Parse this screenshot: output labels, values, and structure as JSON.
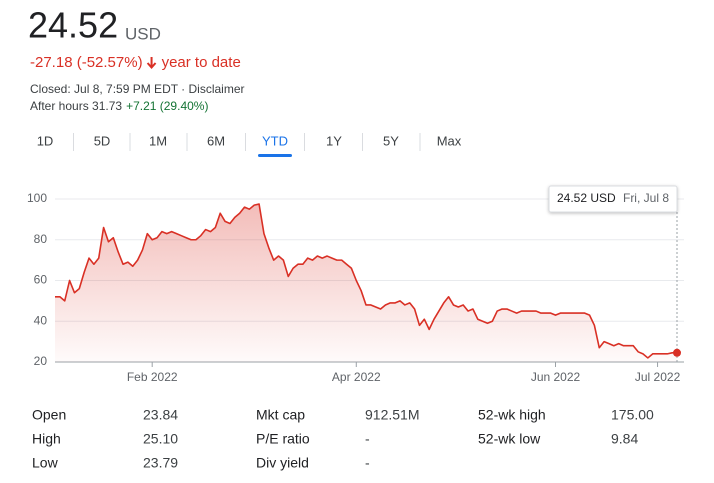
{
  "header": {
    "price": "24.52",
    "currency": "USD",
    "change": "-27.18 (-52.57%)",
    "period": "year to date",
    "closed": "Closed: Jul 8, 7:59 PM EDT · Disclaimer",
    "after_hours": "After hours 31.73",
    "after_hours_change": "+7.21 (29.40%)"
  },
  "tabs": [
    "1D",
    "5D",
    "1M",
    "6M",
    "YTD",
    "1Y",
    "5Y",
    "Max"
  ],
  "selected_tab": 4,
  "tooltip": {
    "price": "24.52 USD",
    "date": "Fri, Jul 8"
  },
  "chart_data": {
    "type": "line",
    "color": "#d93025",
    "categories": [
      null,
      null,
      null,
      null,
      null,
      null,
      null,
      null,
      null,
      null,
      null,
      null,
      null,
      null,
      null,
      null,
      null,
      null,
      null,
      null,
      "Feb 2022",
      null,
      null,
      null,
      null,
      null,
      null,
      null,
      null,
      null,
      null,
      null,
      null,
      null,
      null,
      null,
      null,
      null,
      null,
      null,
      null,
      null,
      null,
      null,
      null,
      null,
      null,
      null,
      null,
      null,
      null,
      null,
      null,
      null,
      null,
      null,
      null,
      null,
      null,
      null,
      null,
      null,
      "Apr 2022",
      null,
      null,
      null,
      null,
      null,
      null,
      null,
      null,
      null,
      null,
      null,
      null,
      null,
      null,
      null,
      null,
      null,
      null,
      null,
      null,
      null,
      null,
      null,
      null,
      null,
      null,
      null,
      null,
      null,
      null,
      null,
      null,
      null,
      null,
      null,
      null,
      null,
      null,
      null,
      null,
      "Jun 2022",
      null,
      null,
      null,
      null,
      null,
      null,
      null,
      null,
      null,
      null,
      null,
      null,
      null,
      null,
      null,
      null,
      null,
      null,
      null,
      null,
      "Jul 2022",
      null,
      null,
      null,
      null
    ],
    "values": [
      52,
      52,
      50,
      60,
      54,
      56,
      64,
      71,
      68,
      71,
      86,
      79,
      81,
      74,
      68,
      69,
      67,
      70,
      75,
      83,
      80,
      81,
      84,
      83,
      84,
      83,
      82,
      81,
      80,
      80,
      82,
      85,
      84,
      86,
      93,
      89,
      88,
      91,
      93,
      96,
      95,
      97,
      97.5,
      83,
      76,
      70,
      72,
      70,
      62,
      66,
      68,
      68,
      71,
      70,
      72,
      71,
      72,
      71,
      70,
      70,
      68,
      66,
      60,
      55,
      48,
      48,
      47,
      46,
      48,
      49,
      49,
      50,
      48,
      49,
      46,
      38,
      41,
      36,
      41,
      45,
      49,
      52,
      48,
      47,
      48,
      45,
      46,
      41,
      40,
      39,
      40,
      45,
      46,
      46,
      45,
      44,
      45,
      45,
      45,
      45,
      44,
      44,
      44,
      43,
      44,
      44,
      44,
      44,
      44,
      44,
      43,
      38,
      27,
      30,
      29,
      28,
      29,
      28,
      28,
      28,
      25,
      24,
      22,
      24,
      24,
      24,
      24,
      24.5,
      24.52
    ],
    "ylim": [
      20,
      100
    ],
    "yticks": [
      20,
      40,
      60,
      80,
      100
    ],
    "grid": true
  },
  "stats": [
    [
      {
        "label": "Open",
        "value": "23.84"
      },
      {
        "label": "High",
        "value": "25.10"
      },
      {
        "label": "Low",
        "value": "23.79"
      }
    ],
    [
      {
        "label": "Mkt cap",
        "value": "912.51M"
      },
      {
        "label": "P/E ratio",
        "value": "-"
      },
      {
        "label": "Div yield",
        "value": "-"
      }
    ],
    [
      {
        "label": "52-wk high",
        "value": "175.00"
      },
      {
        "label": "52-wk low",
        "value": "9.84"
      }
    ]
  ]
}
